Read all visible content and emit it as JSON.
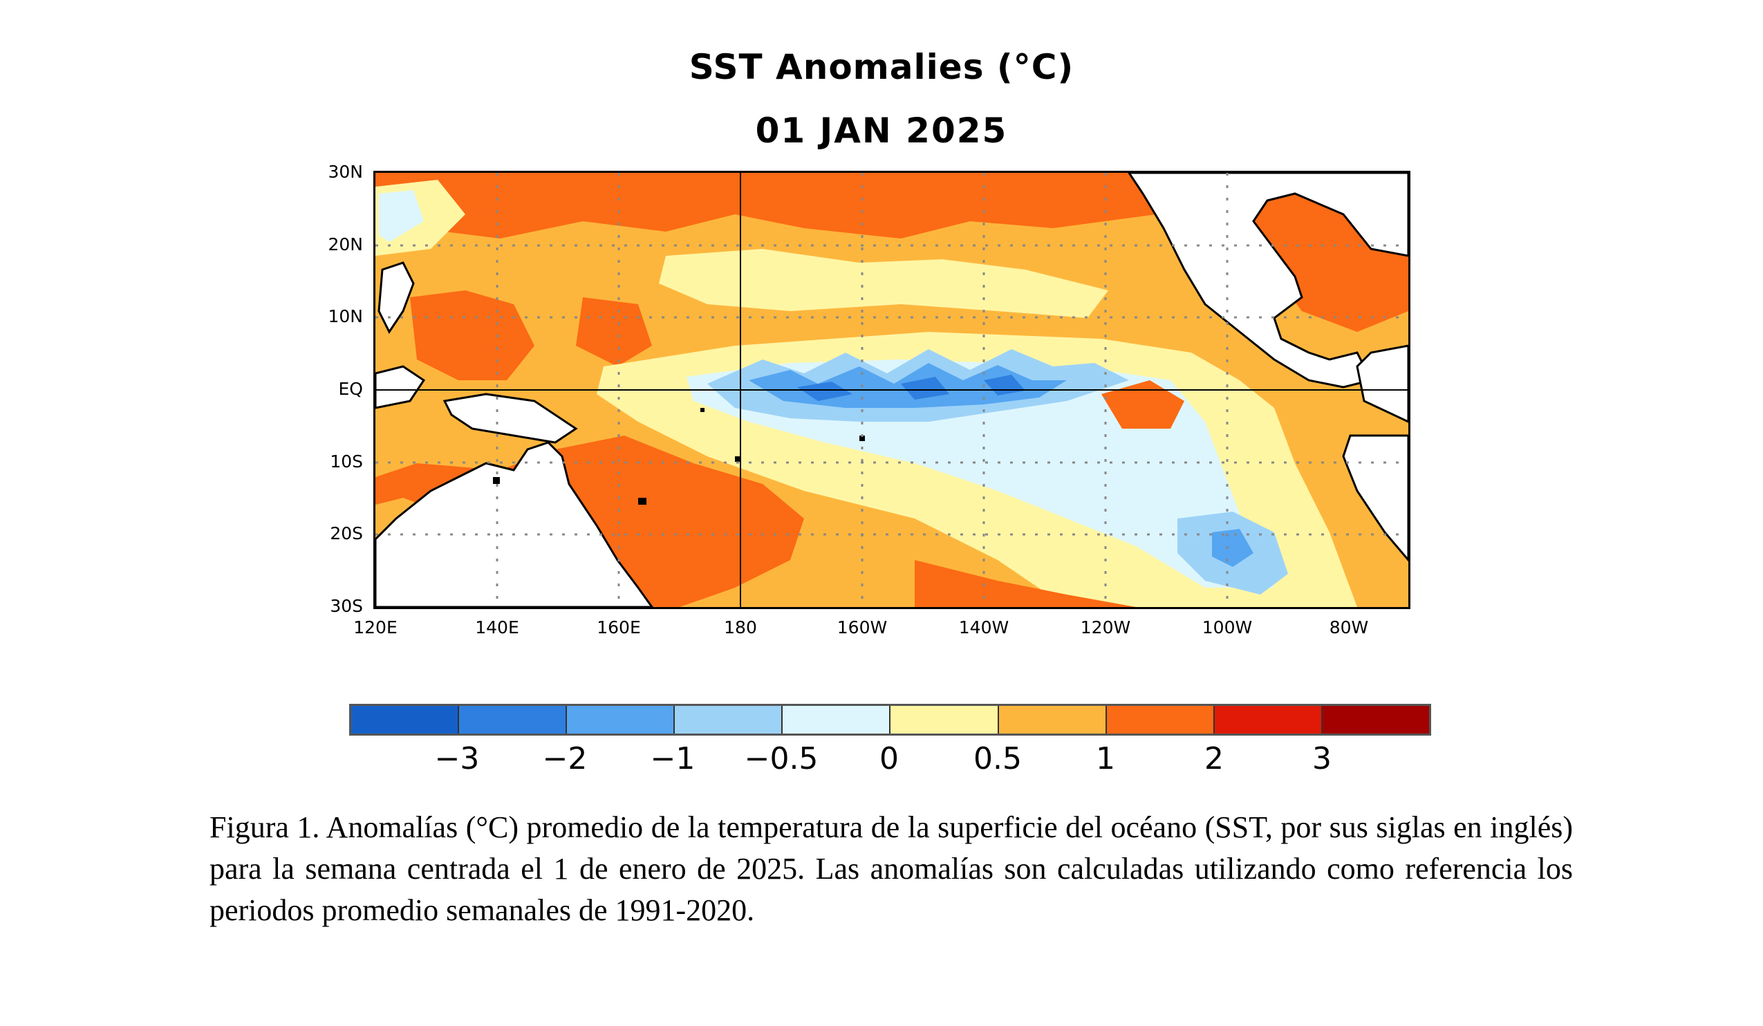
{
  "map": {
    "title": "SST Anomalies (°C)",
    "subtitle": "01 JAN 2025",
    "lat_labels": [
      "30N",
      "20N",
      "10N",
      "EQ",
      "10S",
      "20S",
      "30S"
    ],
    "lon_labels": [
      "120E",
      "140E",
      "160E",
      "180",
      "160W",
      "140W",
      "120W",
      "100W",
      "80W"
    ],
    "lat_range": [
      -30,
      30
    ],
    "lon_range": [
      120,
      290
    ],
    "gridlines": "dotted",
    "land_color": "#ffffff",
    "coastline_color": "#000000"
  },
  "colorbar": {
    "colors": [
      "#1560c8",
      "#2e7fe0",
      "#55a5f0",
      "#9dd2f7",
      "#ddf6fd",
      "#fff6a4",
      "#fdb63d",
      "#fb6a14",
      "#e01a06",
      "#a30000"
    ],
    "labels": [
      "−3",
      "−2",
      "−1",
      "−0.5",
      "0",
      "0.5",
      "1",
      "2",
      "3"
    ]
  },
  "caption": "Figura 1. Anomalías (°C) promedio de la temperatura de la superficie del océano (SST, por sus siglas en inglés) para la semana centrada el 1 de enero de 2025. Las anomalías son calculadas utilizando como referencia los periodos promedio semanales de 1991-2020."
}
